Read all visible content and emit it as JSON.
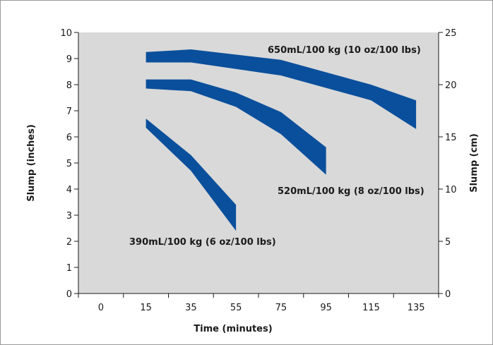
{
  "chart_data": {
    "type": "area",
    "title": "",
    "xlabel": "Time (minutes)",
    "ylabel": "Slump (inches)",
    "y2label": "Slump (cm)",
    "x_ticks": [
      "0",
      "15",
      "35",
      "55",
      "75",
      "95",
      "115",
      "135"
    ],
    "y_ticks": [
      "0",
      "1",
      "2",
      "3",
      "4",
      "5",
      "6",
      "7",
      "8",
      "9",
      "10"
    ],
    "y2_ticks": [
      "0",
      "5",
      "10",
      "15",
      "20",
      "25"
    ],
    "ylim": [
      0,
      10
    ],
    "y2lim": [
      0,
      25
    ],
    "grid": false,
    "background": "#d9d9d9",
    "band_color": "#0a4f9c",
    "series": [
      {
        "name": "650mL/100 kg (10 oz/100 lbs)",
        "x": [
          15,
          35,
          75,
          115,
          135
        ],
        "upper": [
          9.25,
          9.35,
          8.95,
          8.0,
          7.4
        ],
        "lower": [
          8.85,
          8.85,
          8.35,
          7.4,
          6.3
        ]
      },
      {
        "name": "520mL/100 kg (8 oz/100 lbs)",
        "x": [
          15,
          35,
          55,
          75,
          95
        ],
        "upper": [
          8.2,
          8.2,
          7.7,
          6.95,
          5.6
        ],
        "lower": [
          7.85,
          7.75,
          7.15,
          6.1,
          4.55
        ]
      },
      {
        "name": "390mL/100 kg (6 oz/100 lbs)",
        "x": [
          15,
          35,
          55
        ],
        "upper": [
          6.7,
          5.3,
          3.4
        ],
        "lower": [
          6.35,
          4.7,
          2.4
        ]
      }
    ]
  }
}
